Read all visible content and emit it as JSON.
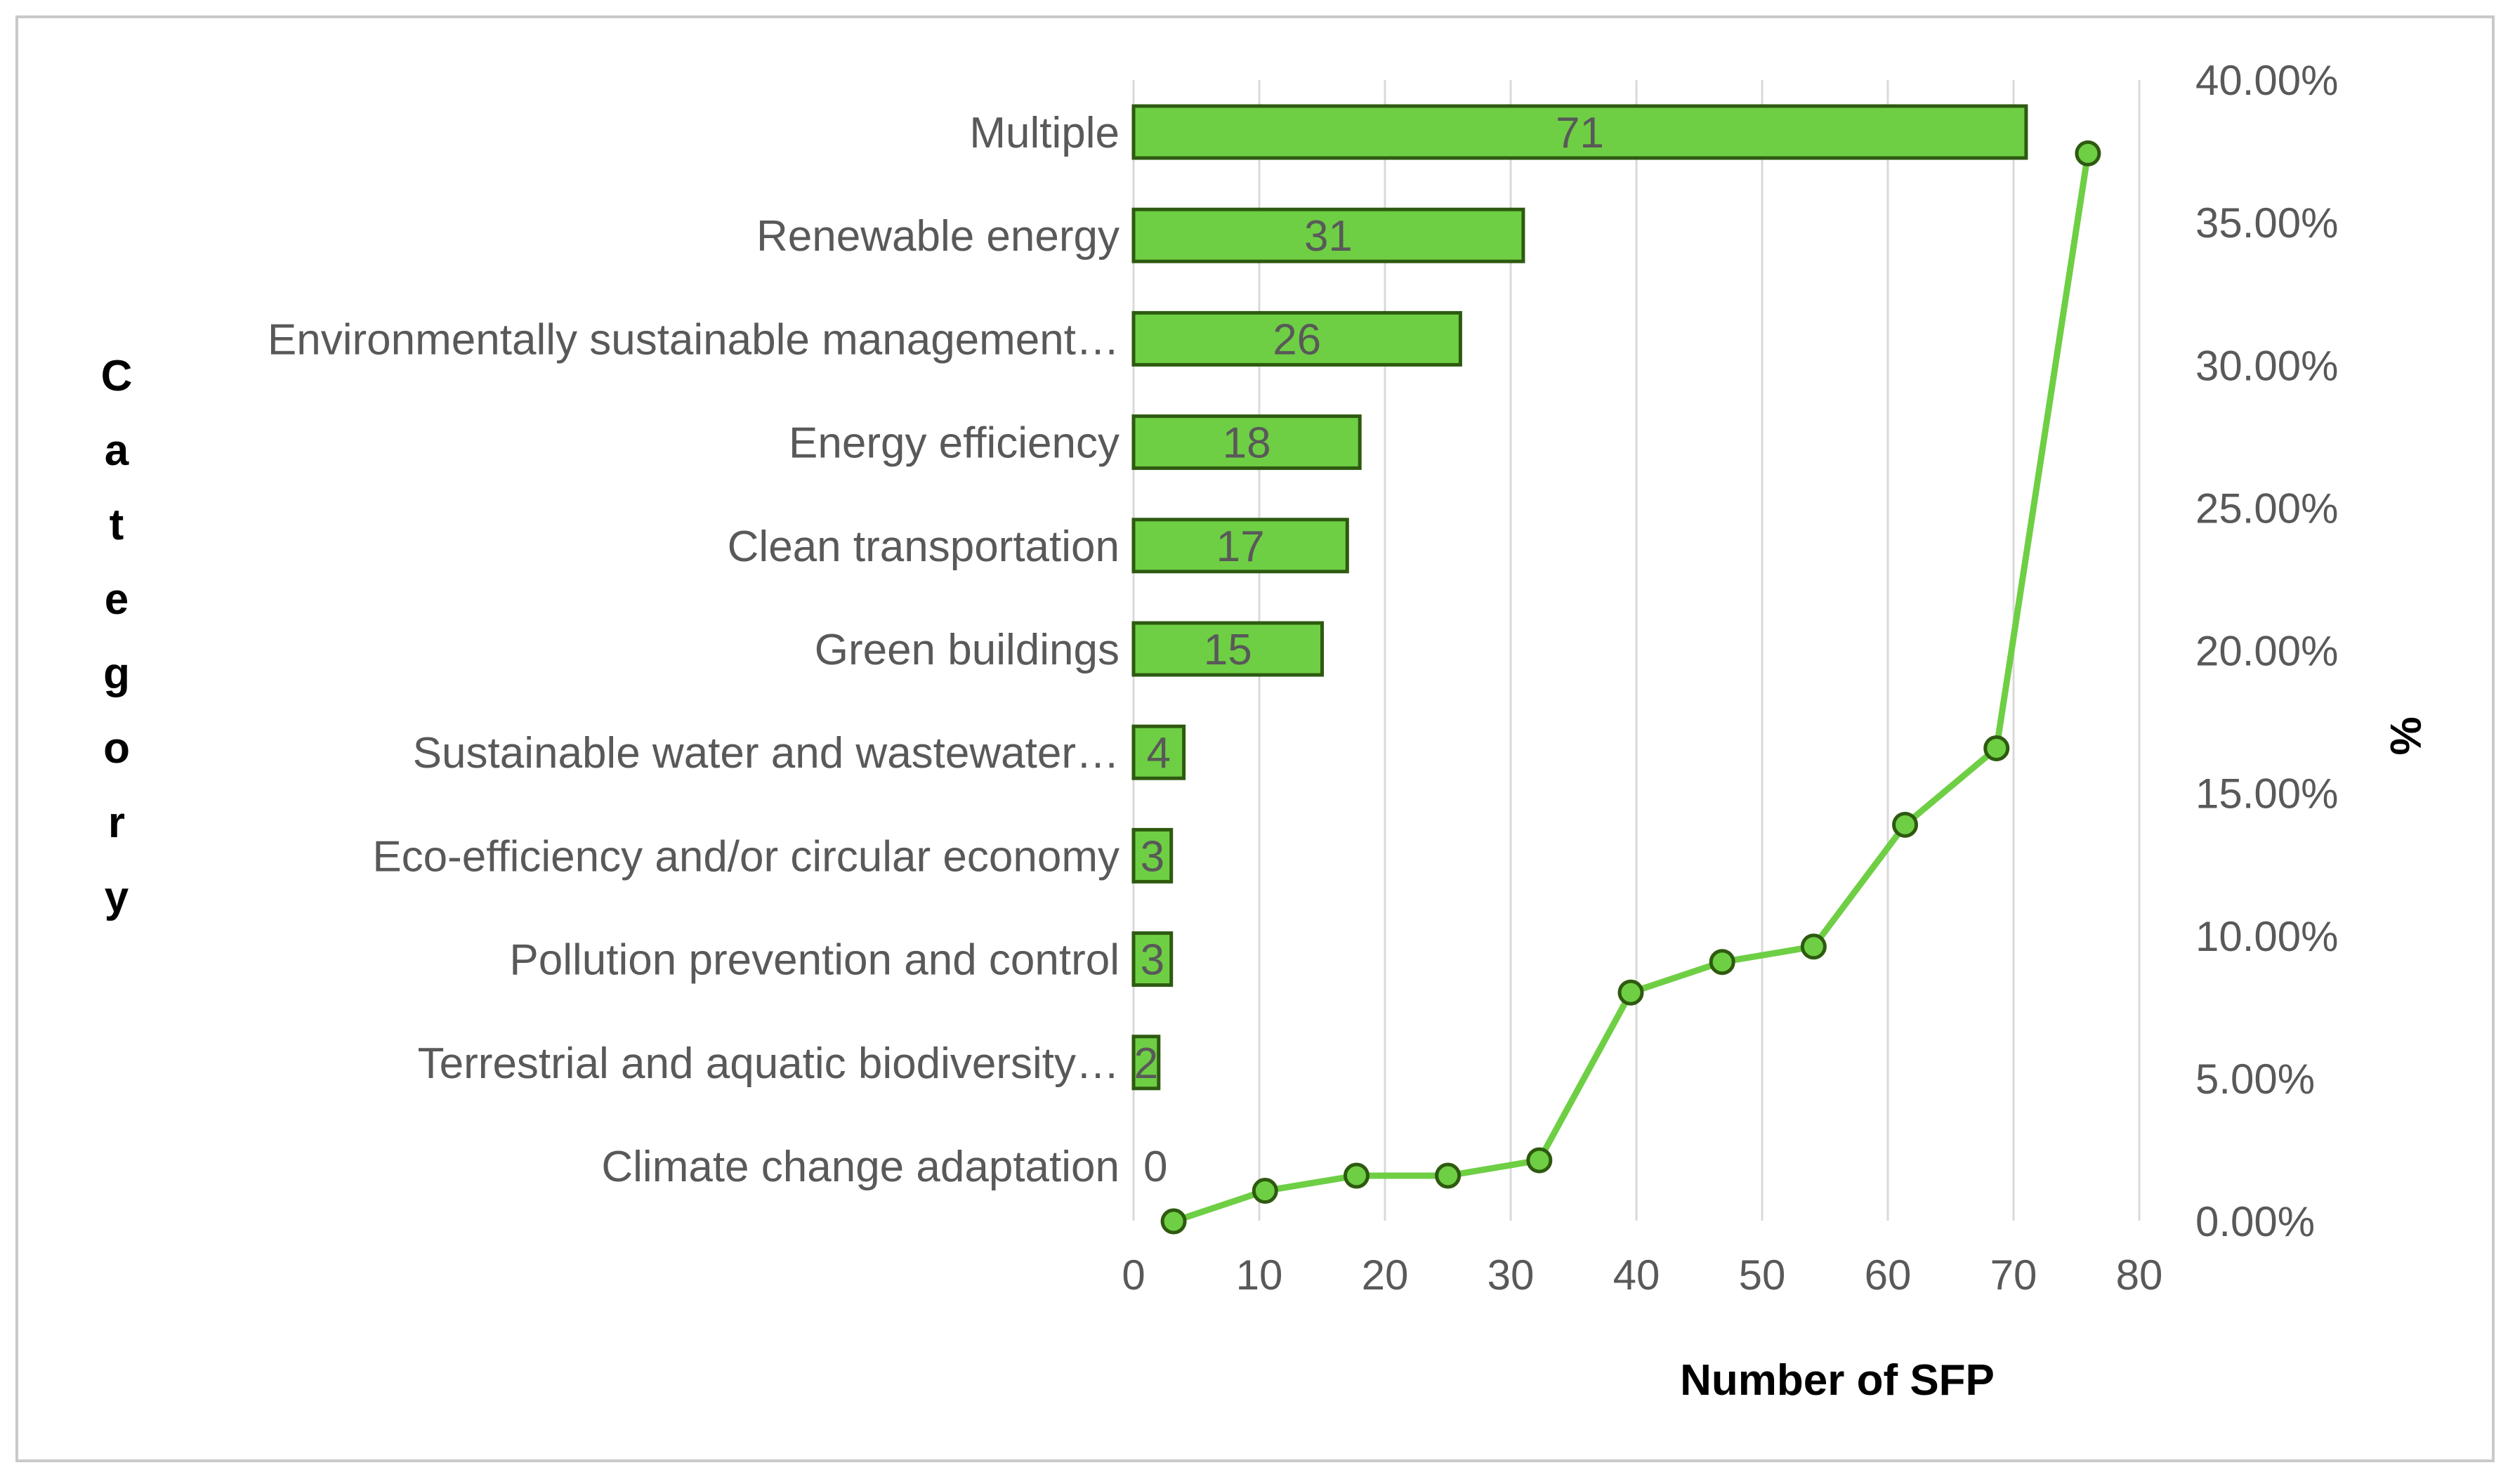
{
  "chart_data": {
    "type": "bar",
    "orientation": "horizontal",
    "ylabel": "Category",
    "xlabel": "Number of SFP",
    "y2label": "%",
    "xlim": [
      0,
      80
    ],
    "x_ticks": [
      "0",
      "10",
      "20",
      "30",
      "40",
      "50",
      "60",
      "70",
      "80"
    ],
    "y2lim": [
      0,
      0.4
    ],
    "y2_ticks": [
      "0.00%",
      "5.00%",
      "10.00%",
      "15.00%",
      "20.00%",
      "25.00%",
      "30.00%",
      "35.00%",
      "40.00%"
    ],
    "grid": "vertical",
    "categories": [
      "Multiple",
      "Renewable energy",
      "Environmentally sustainable management…",
      "Energy efficiency",
      "Clean transportation",
      "Green buildings",
      "Sustainable water and wastewater…",
      "Eco-efficiency and/or circular economy",
      "Pollution prevention and control",
      "Terrestrial and aquatic biodiversity…",
      "Climate change adaptation"
    ],
    "values": [
      71,
      31,
      26,
      18,
      17,
      15,
      4,
      3,
      3,
      2,
      0
    ],
    "data_labels": [
      "71",
      "31",
      "26",
      "18",
      "17",
      "15",
      "4",
      "3",
      "3",
      "2",
      "0"
    ],
    "bar_color": "#6ecf44",
    "bar_edge_color": "#2e5a10",
    "line_series": {
      "name": "%",
      "color": "#6ecf44",
      "marker_fill": "#6ecf44",
      "marker_edge": "#2e5a10",
      "values": [
        0.0,
        0.0107,
        0.016,
        0.016,
        0.0214,
        0.0802,
        0.0909,
        0.0963,
        0.139,
        0.1658,
        0.3743
      ]
    }
  }
}
